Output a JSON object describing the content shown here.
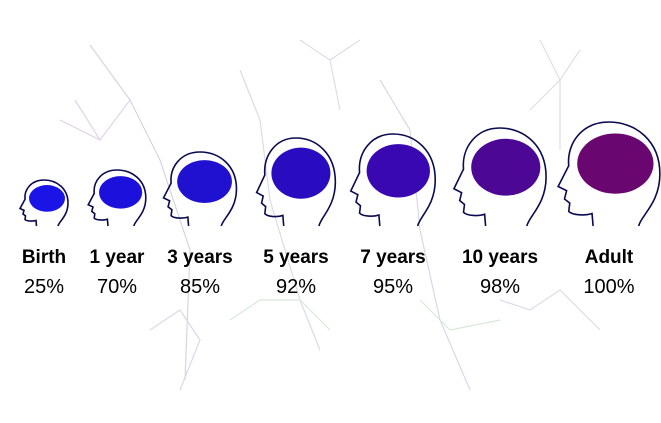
{
  "stages": [
    {
      "label": "Birth",
      "value": "25%"
    },
    {
      "label": "1 year",
      "value": "70%"
    },
    {
      "label": "3 years",
      "value": "85%"
    },
    {
      "label": "5 years",
      "value": "92%"
    },
    {
      "label": "7 years",
      "value": "95%"
    },
    {
      "label": "10 years",
      "value": "98%"
    },
    {
      "label": "Adult",
      "value": "100%"
    }
  ]
}
